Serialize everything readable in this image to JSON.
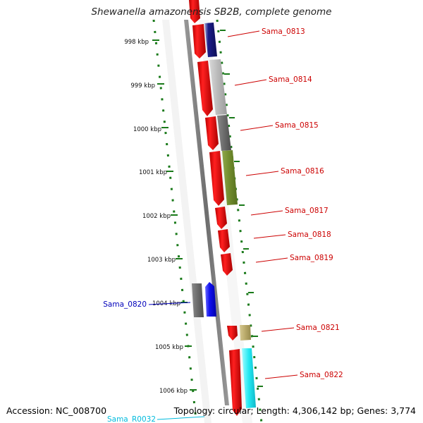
{
  "title": "Shewanella amazonensis SB2B, complete genome",
  "footer": {
    "accession": "Accession: NC_008700",
    "topology": "Topology: circular; Length: 4,306,142 bp; Genes: 3,774"
  },
  "colors": {
    "cds_red": "#ee0000",
    "backbone": "#777777",
    "kbp_ticks": "#1a7a1a",
    "label_red": "#cc0000",
    "label_blue": "#0000bb",
    "label_cyan": "#00bbdd"
  },
  "kbp_ticks": [
    "998 kbp",
    "999 kbp",
    "1000 kbp",
    "1001 kbp",
    "1002 kbp",
    "1003 kbp",
    "1004 kbp",
    "1005 kbp",
    "1006 kbp"
  ],
  "gene_labels": [
    {
      "name": "Sama_0813",
      "side": "right",
      "color": "red"
    },
    {
      "name": "Sama_0814",
      "side": "right",
      "color": "red"
    },
    {
      "name": "Sama_0815",
      "side": "right",
      "color": "red"
    },
    {
      "name": "Sama_0816",
      "side": "right",
      "color": "red"
    },
    {
      "name": "Sama_0817",
      "side": "right",
      "color": "red"
    },
    {
      "name": "Sama_0818",
      "side": "right",
      "color": "red"
    },
    {
      "name": "Sama_0819",
      "side": "right",
      "color": "red"
    },
    {
      "name": "Sama_0820",
      "side": "left",
      "color": "blue"
    },
    {
      "name": "Sama_0821",
      "side": "right",
      "color": "red"
    },
    {
      "name": "Sama_0822",
      "side": "right",
      "color": "red"
    },
    {
      "name": "Sama_R0032",
      "side": "left",
      "color": "cyan"
    }
  ]
}
